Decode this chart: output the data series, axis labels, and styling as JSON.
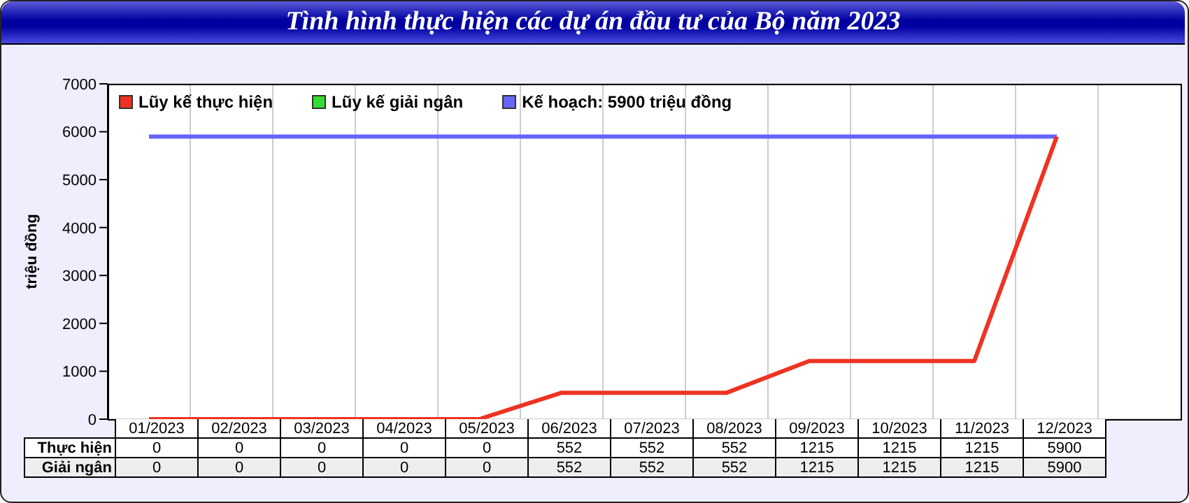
{
  "chart_data": {
    "type": "line",
    "title": "Tình hình thực hiện các dự án đầu tư của Bộ năm 2023",
    "ylabel": "triệu đồng",
    "categories": [
      "01/2023",
      "02/2023",
      "03/2023",
      "04/2023",
      "05/2023",
      "06/2023",
      "07/2023",
      "08/2023",
      "09/2023",
      "10/2023",
      "11/2023",
      "12/2023"
    ],
    "series": [
      {
        "name": "Kế hoạch: 5900 triệu đồng",
        "color": "#6666ff",
        "values": [
          5900,
          5900,
          5900,
          5900,
          5900,
          5900,
          5900,
          5900,
          5900,
          5900,
          5900,
          5900
        ]
      },
      {
        "name": "Lũy kế giải ngân",
        "color": "#33dd33",
        "values": [
          null,
          null,
          null,
          null,
          null,
          null,
          null,
          null,
          null,
          null,
          null,
          null
        ],
        "value_labels": [
          "0",
          "0",
          "0",
          "0",
          "0",
          "552",
          "552",
          "552",
          "1215",
          "1215",
          "1215",
          "5900"
        ]
      },
      {
        "name": "Lũy kế thực hiện",
        "color": "#ee3322",
        "values": [
          0,
          0,
          0,
          0,
          0,
          552,
          552,
          552,
          1215,
          1215,
          1215,
          5900
        ],
        "value_labels": [
          "0",
          "0",
          "0",
          "0",
          "0",
          "552",
          "552",
          "552",
          "1215",
          "1215",
          "1215",
          "5900"
        ]
      }
    ],
    "annotations": [
      "Giải ngân",
      "Thực hiện"
    ],
    "ylim": [
      0,
      7000
    ],
    "yticks": [
      0,
      1000,
      2000,
      3000,
      4000,
      5000,
      6000,
      7000
    ],
    "grid": true,
    "legend": "top left",
    "marker": "none",
    "line_style": "solid"
  }
}
